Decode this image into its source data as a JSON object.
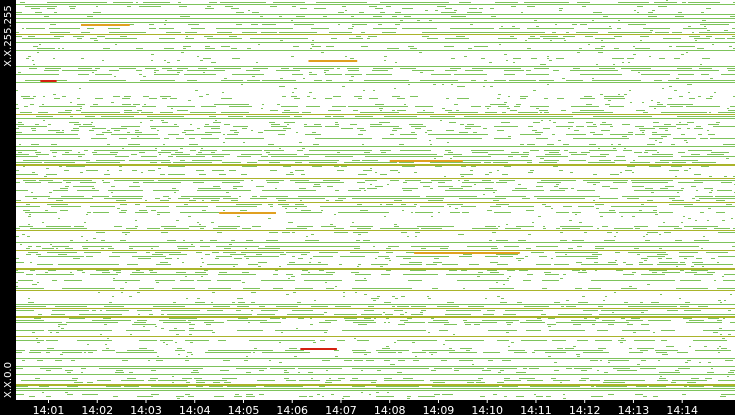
{
  "chart_data": {
    "type": "heatmap",
    "title": "",
    "xlabel": "",
    "ylabel": "",
    "x_tick_labels": [
      "14:01",
      "14:02",
      "14:03",
      "14:04",
      "14:05",
      "14:06",
      "14:07",
      "14:08",
      "14:09",
      "14:10",
      "14:11",
      "14:12",
      "14:13",
      "14:14"
    ],
    "y_tick_labels": [
      "X.X.255.255",
      "X.X.0.0"
    ],
    "x_range": [
      "14:00:20",
      "14:15:05"
    ],
    "y_range": [
      "X.X.0.0",
      "X.X.255.255"
    ],
    "grid": false,
    "legend": "none",
    "colors": {
      "background": "#ffffff",
      "axis_background": "#000000",
      "low": "#7dc35b",
      "medium": "#aab42a",
      "high": "#e0a020",
      "highest": "#d42010",
      "axis_text": "#ffffff"
    },
    "highlights": [
      {
        "address_fraction": 0.04,
        "start": "14:00:20",
        "end": "14:15:05",
        "level": "medium"
      },
      {
        "address_fraction": 0.13,
        "start": "14:06:10",
        "end": "14:06:55",
        "level": "highest"
      },
      {
        "address_fraction": 0.21,
        "start": "14:00:20",
        "end": "14:15:05",
        "level": "medium"
      },
      {
        "address_fraction": 0.33,
        "start": "14:00:20",
        "end": "14:15:05",
        "level": "medium"
      },
      {
        "address_fraction": 0.37,
        "start": "14:08:30",
        "end": "14:10:40",
        "level": "high"
      },
      {
        "address_fraction": 0.47,
        "start": "14:04:30",
        "end": "14:05:40",
        "level": "high"
      },
      {
        "address_fraction": 0.59,
        "start": "14:00:20",
        "end": "14:15:05",
        "level": "medium"
      },
      {
        "address_fraction": 0.6,
        "start": "14:08:00",
        "end": "14:09:30",
        "level": "high"
      },
      {
        "address_fraction": 0.8,
        "start": "14:00:50",
        "end": "14:01:10",
        "level": "highest"
      },
      {
        "address_fraction": 0.85,
        "start": "14:06:20",
        "end": "14:07:20",
        "level": "high"
      },
      {
        "address_fraction": 0.94,
        "start": "14:01:40",
        "end": "14:02:40",
        "level": "high"
      }
    ]
  }
}
